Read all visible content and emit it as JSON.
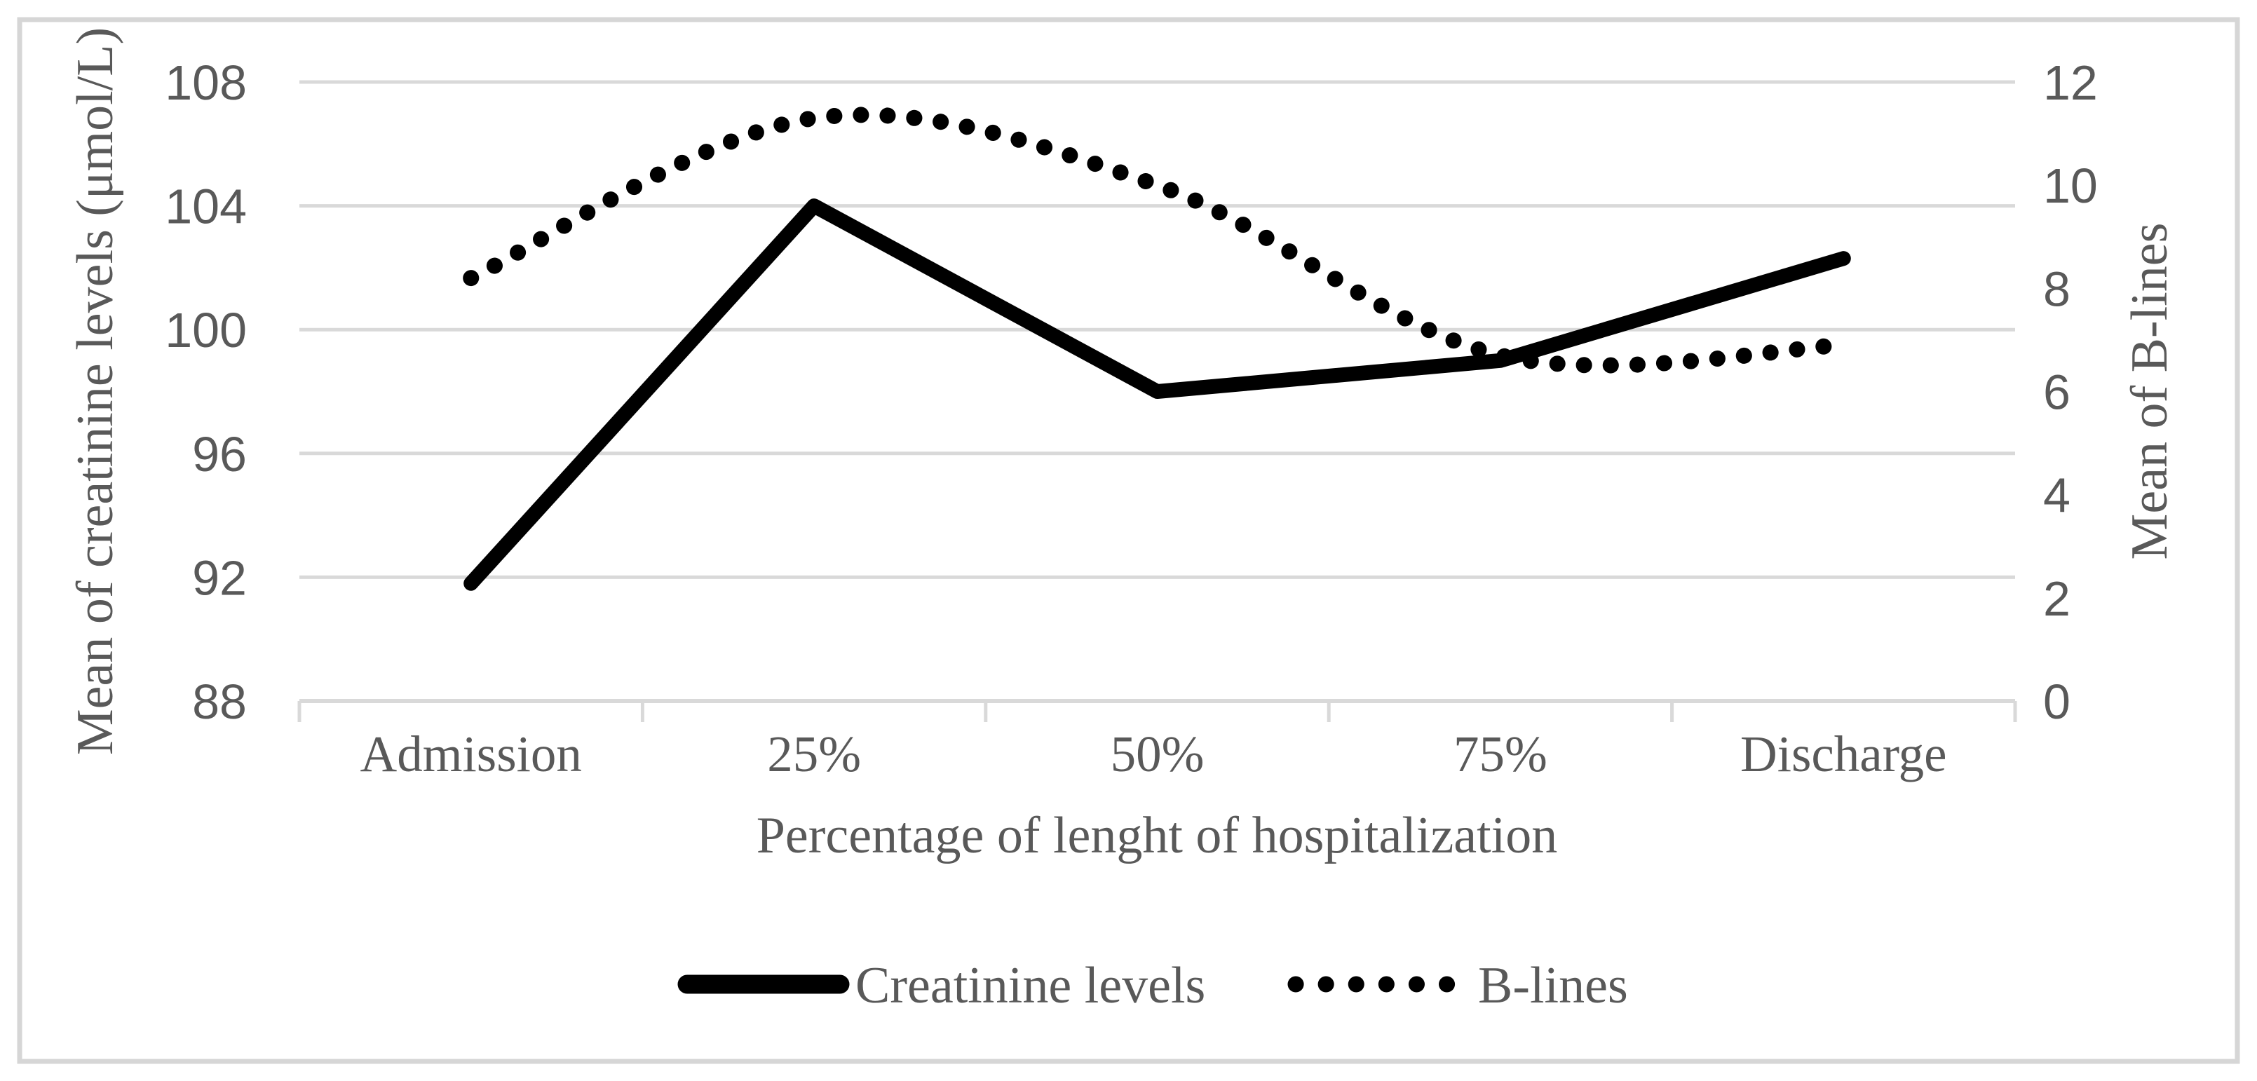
{
  "chart_data": {
    "type": "line",
    "categories": [
      "Admission",
      "25%",
      "50%",
      "75%",
      "Discharge"
    ],
    "series": [
      {
        "name": "Creatinine levels",
        "axis": "left",
        "line_style": "solid",
        "smooth": false,
        "values": [
          91.8,
          104,
          98,
          99,
          102.3
        ]
      },
      {
        "name": "B-lines",
        "axis": "right",
        "line_style": "dotted",
        "smooth": true,
        "values": [
          8.2,
          11.3,
          10.0,
          6.7,
          6.9
        ]
      }
    ],
    "y_axis_left": {
      "title": "Mean of creatinine levels (μmol/L)",
      "min": 88,
      "max": 108,
      "tick_step": 4,
      "ticks": [
        "108",
        "104",
        "100",
        "96",
        "92",
        "88"
      ]
    },
    "y_axis_right": {
      "title": "Mean of B-lines",
      "min": 0,
      "max": 12,
      "tick_step": 2,
      "ticks": [
        "12",
        "10",
        "8",
        "6",
        "4",
        "2",
        "0"
      ]
    },
    "x_axis": {
      "title": "Percentage of lenght of hospitalization"
    },
    "legend": {
      "position": "bottom",
      "entries": [
        "Creatinine levels",
        "B-lines"
      ]
    },
    "grid": true,
    "colors": {
      "series": "#000000",
      "text": "#595959",
      "gridline": "#d9d9d9",
      "axis_line": "#d9d9d9",
      "border": "#d6d6d6",
      "background": "#ffffff"
    }
  }
}
